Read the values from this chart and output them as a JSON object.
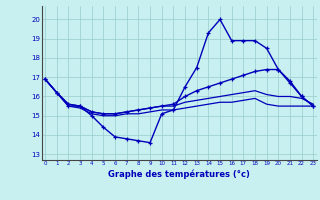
{
  "xlabel": "Graphe des températures (°c)",
  "background_color": "#c8f0f0",
  "grid_color": "#99cccc",
  "line_color": "#0000bb",
  "ylim": [
    12.7,
    20.7
  ],
  "xlim": [
    -0.3,
    23.3
  ],
  "yticks": [
    13,
    14,
    15,
    16,
    17,
    18,
    19,
    20
  ],
  "xticks": [
    0,
    1,
    2,
    3,
    4,
    5,
    6,
    7,
    8,
    9,
    10,
    11,
    12,
    13,
    14,
    15,
    16,
    17,
    18,
    19,
    20,
    21,
    22,
    23
  ],
  "hours": [
    0,
    1,
    2,
    3,
    4,
    5,
    6,
    7,
    8,
    9,
    10,
    11,
    12,
    13,
    14,
    15,
    16,
    17,
    18,
    19,
    20,
    21,
    22,
    23
  ],
  "line1": [
    16.9,
    16.2,
    15.5,
    15.5,
    15.0,
    14.4,
    13.9,
    13.8,
    13.7,
    13.6,
    15.1,
    15.3,
    16.5,
    17.5,
    19.3,
    20.0,
    18.9,
    18.9,
    18.9,
    18.5,
    17.4,
    16.7,
    16.0,
    15.5
  ],
  "line2": [
    16.9,
    16.2,
    15.6,
    15.5,
    15.2,
    15.1,
    15.1,
    15.2,
    15.3,
    15.4,
    15.5,
    15.6,
    16.0,
    16.3,
    16.5,
    16.7,
    16.9,
    17.1,
    17.3,
    17.4,
    17.4,
    16.8,
    16.0,
    15.5
  ],
  "line3": [
    16.9,
    16.2,
    15.6,
    15.5,
    15.2,
    15.1,
    15.1,
    15.2,
    15.3,
    15.4,
    15.5,
    15.5,
    15.7,
    15.8,
    15.9,
    16.0,
    16.1,
    16.2,
    16.3,
    16.1,
    16.0,
    16.0,
    15.9,
    15.6
  ],
  "line4": [
    16.9,
    16.2,
    15.5,
    15.4,
    15.1,
    15.0,
    15.0,
    15.1,
    15.1,
    15.2,
    15.3,
    15.3,
    15.4,
    15.5,
    15.6,
    15.7,
    15.7,
    15.8,
    15.9,
    15.6,
    15.5,
    15.5,
    15.5,
    15.5
  ]
}
